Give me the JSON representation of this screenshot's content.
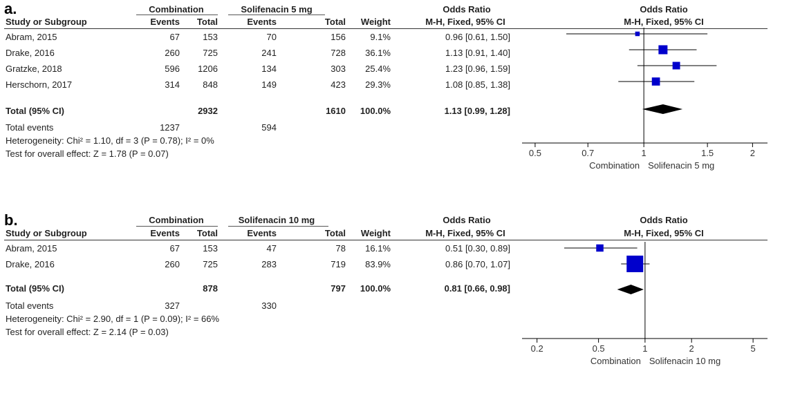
{
  "chart_data": [
    {
      "type": "forest",
      "panel_label": "a.",
      "group1": "Combination",
      "group2": "Solifenacin 5 mg",
      "headers": {
        "study": "Study or Subgroup",
        "events": "Events",
        "total": "Total",
        "weight": "Weight",
        "or_title": "Odds Ratio",
        "or_method": "M-H, Fixed, 95% CI"
      },
      "studies": [
        {
          "name": "Abram, 2015",
          "e1": "67",
          "t1": "153",
          "e2": "70",
          "t2": "156",
          "weight": "9.1%",
          "ci_text": "0.96 [0.61, 1.50]",
          "or": 0.96,
          "lo": 0.61,
          "hi": 1.5,
          "w": 9.1
        },
        {
          "name": "Drake, 2016",
          "e1": "260",
          "t1": "725",
          "e2": "241",
          "t2": "728",
          "weight": "36.1%",
          "ci_text": "1.13 [0.91, 1.40]",
          "or": 1.13,
          "lo": 0.91,
          "hi": 1.4,
          "w": 36.1
        },
        {
          "name": "Gratzke, 2018",
          "e1": "596",
          "t1": "1206",
          "e2": "134",
          "t2": "303",
          "weight": "25.4%",
          "ci_text": "1.23 [0.96, 1.59]",
          "or": 1.23,
          "lo": 0.96,
          "hi": 1.59,
          "w": 25.4
        },
        {
          "name": "Herschorn, 2017",
          "e1": "314",
          "t1": "848",
          "e2": "149",
          "t2": "423",
          "weight": "29.3%",
          "ci_text": "1.08 [0.85, 1.38]",
          "or": 1.08,
          "lo": 0.85,
          "hi": 1.38,
          "w": 29.3
        }
      ],
      "total": {
        "label": "Total (95% CI)",
        "t1": "2932",
        "t2": "1610",
        "weight": "100.0%",
        "ci_text": "1.13 [0.99, 1.28]",
        "or": 1.13,
        "lo": 0.99,
        "hi": 1.28
      },
      "total_events": {
        "label": "Total events",
        "e1": "1237",
        "e2": "594"
      },
      "heterogeneity": "Heterogeneity: Chi² = 1.10, df = 3 (P = 0.78); I² = 0%",
      "overall_effect": "Test for overall effect: Z = 1.78 (P = 0.07)",
      "x_scale": "log",
      "x_range": [
        0.46,
        2.2
      ],
      "ticks": [
        {
          "v": 0.5,
          "label": "0.5"
        },
        {
          "v": 0.7,
          "label": "0.7"
        },
        {
          "v": 1,
          "label": "1"
        },
        {
          "v": 1.5,
          "label": "1.5"
        },
        {
          "v": 2,
          "label": "2"
        }
      ],
      "favours_left": "Combination",
      "favours_right": "Solifenacin 5 mg",
      "marker_color": "#0000cc"
    },
    {
      "type": "forest",
      "panel_label": "b.",
      "group1": "Combination",
      "group2": "Solifenacin 10 mg",
      "headers": {
        "study": "Study or Subgroup",
        "events": "Events",
        "total": "Total",
        "weight": "Weight",
        "or_title": "Odds Ratio",
        "or_method": "M-H, Fixed, 95% CI"
      },
      "studies": [
        {
          "name": "Abram, 2015",
          "e1": "67",
          "t1": "153",
          "e2": "47",
          "t2": "78",
          "weight": "16.1%",
          "ci_text": "0.51 [0.30, 0.89]",
          "or": 0.51,
          "lo": 0.3,
          "hi": 0.89,
          "w": 16.1
        },
        {
          "name": "Drake, 2016",
          "e1": "260",
          "t1": "725",
          "e2": "283",
          "t2": "719",
          "weight": "83.9%",
          "ci_text": "0.86 [0.70, 1.07]",
          "or": 0.86,
          "lo": 0.7,
          "hi": 1.07,
          "w": 83.9
        }
      ],
      "total": {
        "label": "Total (95% CI)",
        "t1": "878",
        "t2": "797",
        "weight": "100.0%",
        "ci_text": "0.81 [0.66, 0.98]",
        "or": 0.81,
        "lo": 0.66,
        "hi": 0.98
      },
      "total_events": {
        "label": "Total events",
        "e1": "327",
        "e2": "330"
      },
      "heterogeneity": "Heterogeneity: Chi² = 2.90, df = 1 (P = 0.09); I² = 66%",
      "overall_effect": "Test for overall effect: Z = 2.14 (P = 0.03)",
      "x_scale": "log",
      "x_range": [
        0.16,
        6.2
      ],
      "ticks": [
        {
          "v": 0.2,
          "label": "0.2"
        },
        {
          "v": 0.5,
          "label": "0.5"
        },
        {
          "v": 1,
          "label": "1"
        },
        {
          "v": 2,
          "label": "2"
        },
        {
          "v": 5,
          "label": "5"
        }
      ],
      "favours_left": "Combination",
      "favours_right": "Solifenacin 10 mg",
      "marker_color": "#0000cc"
    }
  ]
}
